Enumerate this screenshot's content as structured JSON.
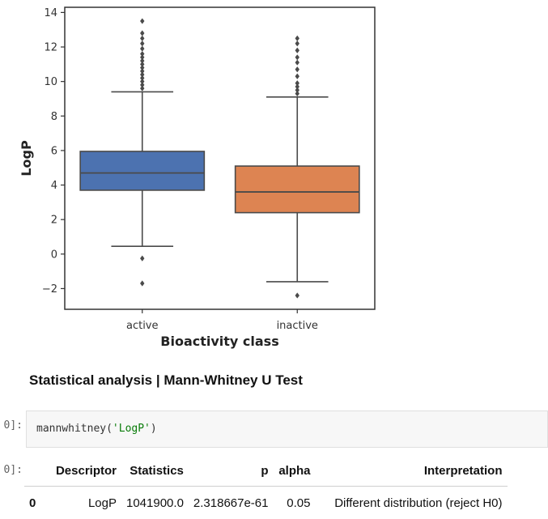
{
  "chart_data": {
    "type": "box",
    "xlabel": "Bioactivity class",
    "ylabel": "LogP",
    "ylim": [
      -3.2,
      14.3
    ],
    "yticks": [
      -2,
      0,
      2,
      4,
      6,
      8,
      10,
      12,
      14
    ],
    "ytick_labels": [
      "−2",
      "0",
      "2",
      "4",
      "6",
      "8",
      "10",
      "12",
      "14"
    ],
    "categories": [
      "active",
      "inactive"
    ],
    "series": [
      {
        "category": "active",
        "color": "#4c72b0",
        "whisker_low": 0.45,
        "q1": 3.7,
        "median": 4.7,
        "q3": 5.95,
        "whisker_high": 9.4,
        "outliers": [
          -0.25,
          -1.7,
          9.6,
          9.8,
          10.0,
          10.2,
          10.4,
          10.6,
          10.8,
          11.0,
          11.2,
          11.4,
          11.6,
          11.9,
          12.2,
          12.5,
          12.8,
          13.5
        ]
      },
      {
        "category": "inactive",
        "color": "#dd8452",
        "whisker_low": -1.6,
        "q1": 2.4,
        "median": 3.6,
        "q3": 5.1,
        "whisker_high": 9.1,
        "outliers": [
          -2.4,
          9.3,
          9.5,
          9.7,
          9.9,
          10.3,
          10.7,
          11.1,
          11.4,
          11.8,
          12.2,
          12.5
        ]
      }
    ],
    "grid": false,
    "legend": "none"
  },
  "heading": "Statistical analysis | Mann-Whitney U Test",
  "input_prompt": "0]:",
  "output_prompt": "0]:",
  "code": {
    "prefix": "mannwhitney(",
    "arg": "'LogP'",
    "suffix": ")"
  },
  "table": {
    "columns": [
      "",
      "Descriptor",
      "Statistics",
      "p",
      "alpha",
      "Interpretation"
    ],
    "rows": [
      {
        "index": "0",
        "descriptor": "LogP",
        "statistics": "1041900.0",
        "p": "2.318667e-61",
        "alpha": "0.05",
        "interpretation": "Different distribution (reject H0)"
      }
    ]
  }
}
